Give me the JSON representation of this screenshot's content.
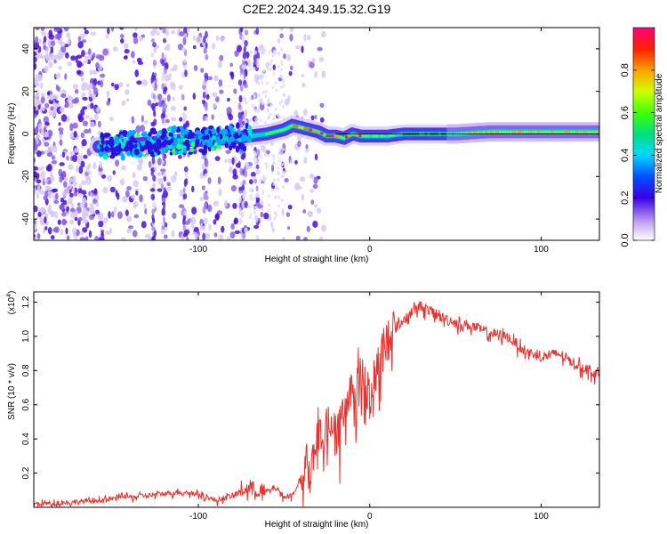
{
  "title": "C2E2.2024.349.15.32.G19",
  "chart_data": [
    {
      "type": "heatmap",
      "xlabel": "Height of straight line (km)",
      "ylabel": "Frequency (Hz)",
      "xlim": [
        -196,
        134
      ],
      "ylim": [
        -50,
        50
      ],
      "xticks": [
        -100,
        0,
        100
      ],
      "yticks": [
        -40,
        -20,
        0,
        20,
        40
      ],
      "ridge": {
        "x": [
          -155,
          -140,
          -125,
          -110,
          -95,
          -80,
          -70,
          -60,
          -50,
          -45,
          -40,
          -35,
          -30,
          -25,
          -20,
          -15,
          -10,
          -5,
          0,
          10,
          20,
          30,
          50,
          70,
          90,
          110,
          134
        ],
        "freq": [
          -6,
          -5,
          -4,
          -3,
          -3,
          -2,
          -1,
          0,
          2,
          4,
          3,
          2,
          1,
          -1,
          -1,
          -2,
          0,
          -1,
          -1,
          -1,
          0,
          0,
          0,
          1,
          1,
          1,
          1
        ]
      },
      "colorbar": {
        "label": "Normalized spectral amplitude",
        "ticks": [
          "0.0",
          "0.2",
          "0.4",
          "0.6",
          "0.8"
        ],
        "range": [
          0,
          1
        ]
      }
    },
    {
      "type": "line",
      "xlabel": "Height of straight line (km)",
      "ylabel": "SNR (10 * v/v)",
      "multiplier": "(x10",
      "multiplier_exp": "4",
      "xlim": [
        -196,
        134
      ],
      "ylim": [
        0,
        1.26
      ],
      "xticks": [
        -100,
        0,
        100
      ],
      "yticks": [
        "0.2",
        "0.4",
        "0.6",
        "0.8",
        "1.0",
        "1.2"
      ],
      "color": "#e8322e",
      "series": [
        {
          "x": [
            -196,
            -175,
            -160,
            -150,
            -145,
            -140,
            -130,
            -120,
            -110,
            -100,
            -90,
            -80,
            -70,
            -65,
            -60,
            -55,
            -50,
            -45,
            -40,
            -35,
            -30,
            -25,
            -20,
            -15,
            -10,
            -5,
            0,
            5,
            10,
            15,
            20,
            25,
            30,
            40,
            50,
            60,
            70,
            80,
            90,
            100,
            110,
            120,
            134
          ],
          "y": [
            0.02,
            0.03,
            0.04,
            0.05,
            0.07,
            0.06,
            0.07,
            0.08,
            0.09,
            0.08,
            0.04,
            0.07,
            0.12,
            0.1,
            0.09,
            0.12,
            0.06,
            0.07,
            0.18,
            0.35,
            0.42,
            0.48,
            0.55,
            0.6,
            0.72,
            0.8,
            0.68,
            0.85,
            1.0,
            1.05,
            1.1,
            1.15,
            1.18,
            1.12,
            1.08,
            1.06,
            1.02,
            1.0,
            0.92,
            0.88,
            0.9,
            0.84,
            0.78
          ]
        }
      ]
    }
  ]
}
